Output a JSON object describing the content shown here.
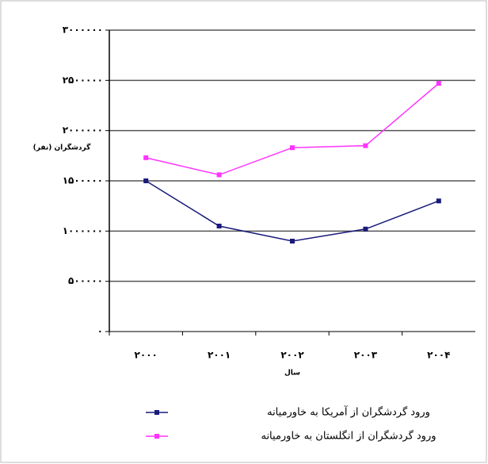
{
  "chart_data": {
    "type": "line",
    "y_axis_label": "گردشگران (نفر)",
    "x_axis_label": "سال",
    "categories": [
      "۲۰۰۰",
      "۲۰۰۱",
      "۲۰۰۲",
      "۲۰۰۳",
      "۲۰۰۴"
    ],
    "series": [
      {
        "name": "ورود گردشگران از آمریکا به خاورمیانه",
        "color": "#1a1a7a",
        "values": [
          1500000,
          1050000,
          900000,
          1020000,
          1300000
        ]
      },
      {
        "name": "ورود گردشگران از انگلستان به خاورمیانه",
        "color": "#ff33ff",
        "values": [
          1730000,
          1560000,
          1830000,
          1850000,
          2470000
        ]
      }
    ],
    "ylim": [
      0,
      3000000
    ],
    "yticks": [
      {
        "value": 0,
        "label": "۰"
      },
      {
        "value": 500000,
        "label": "۵۰۰۰۰۰"
      },
      {
        "value": 1000000,
        "label": "۱۰۰۰۰۰۰"
      },
      {
        "value": 1500000,
        "label": "۱۵۰۰۰۰۰"
      },
      {
        "value": 2000000,
        "label": "۲۰۰۰۰۰۰"
      },
      {
        "value": 2500000,
        "label": "۲۵۰۰۰۰۰"
      },
      {
        "value": 3000000,
        "label": "۳۰۰۰۰۰۰"
      }
    ],
    "grid": true,
    "legend": "bottom"
  }
}
